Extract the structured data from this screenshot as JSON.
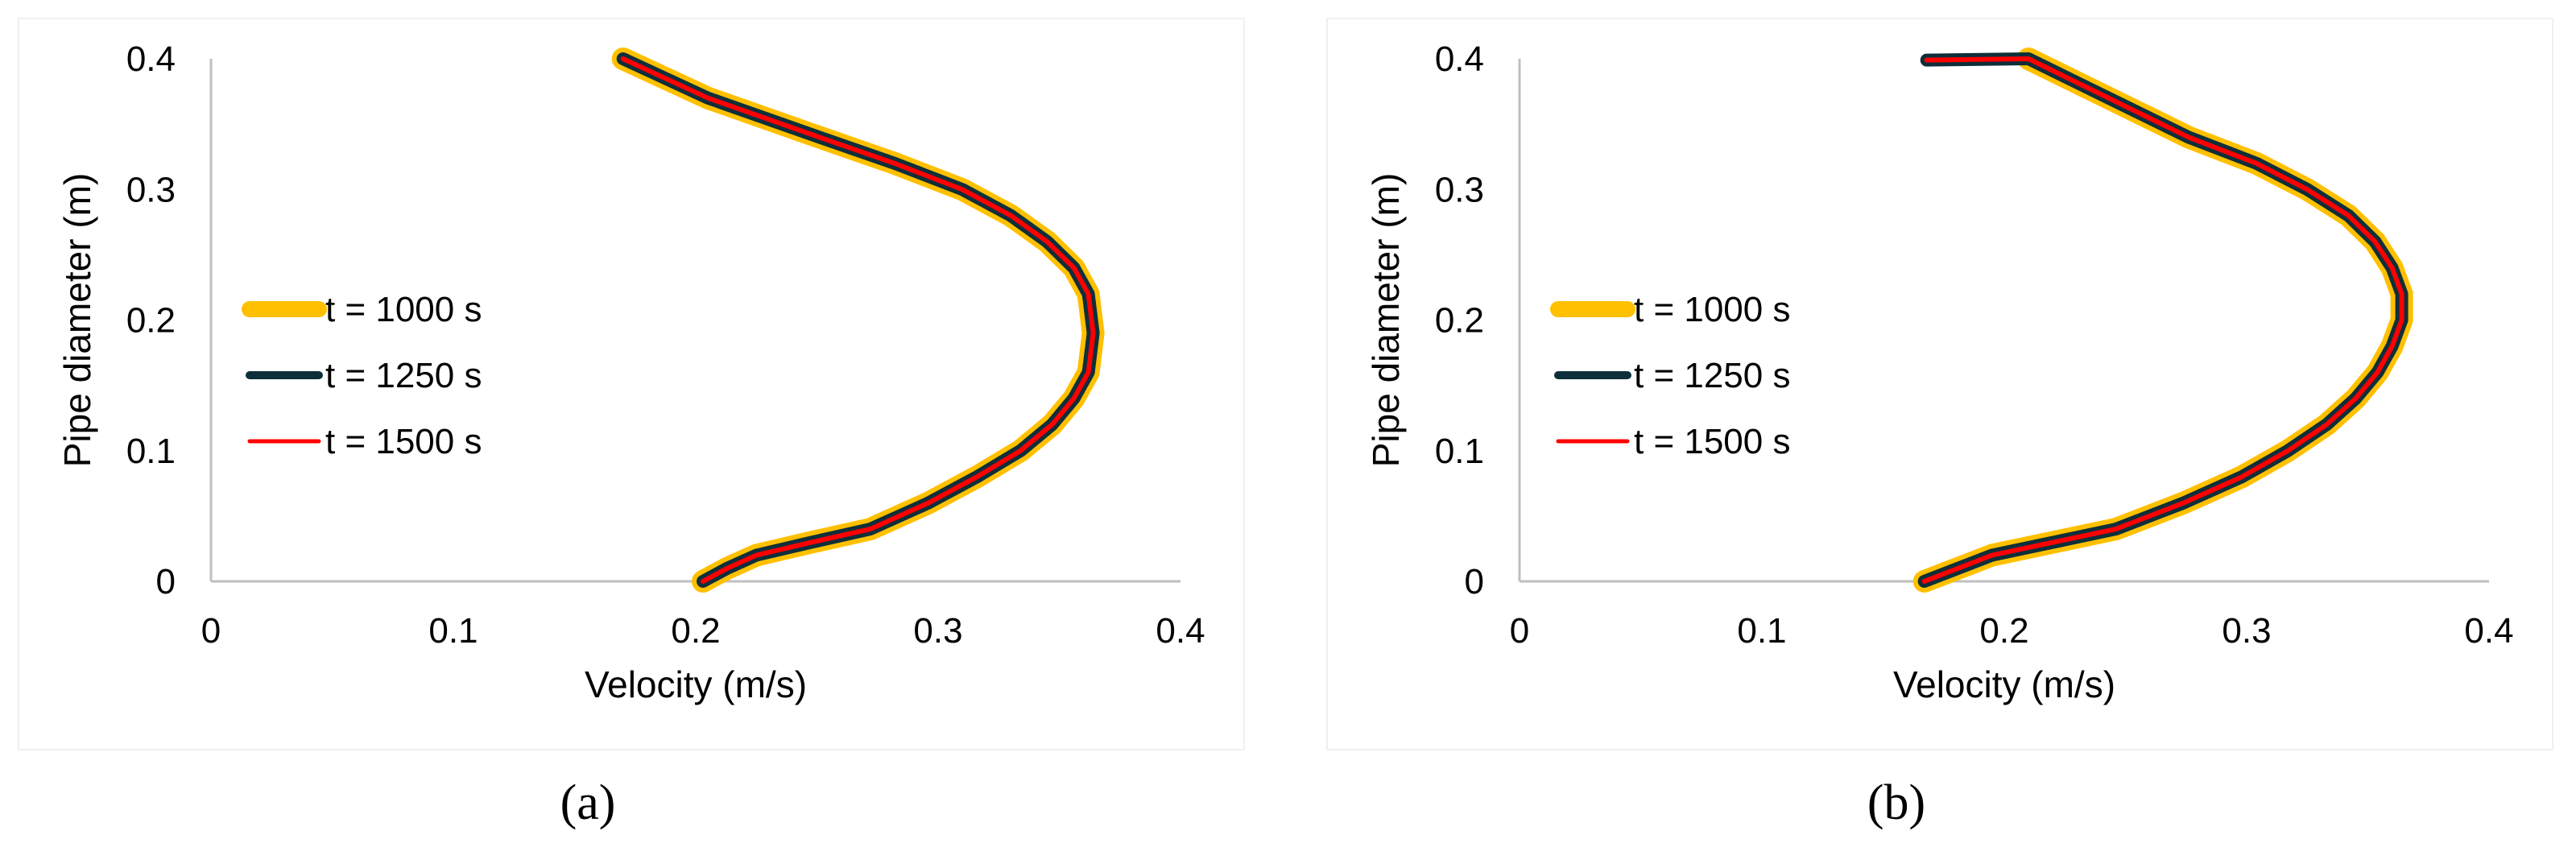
{
  "colors": {
    "t1000": "#FFC000",
    "t1250": "#0E2F3A",
    "t1500": "#FF0000",
    "axis": "#BFBFBF",
    "text": "#000000"
  },
  "chart_data": [
    {
      "type": "line",
      "panel_label": "(a)",
      "xlabel": "Velocity (m/s)",
      "ylabel": "Pipe diameter (m)",
      "xlim": [
        0,
        0.4
      ],
      "ylim": [
        0,
        0.4
      ],
      "x_ticks": [
        "0",
        "0.1",
        "0.2",
        "0.3",
        "0.4"
      ],
      "y_ticks": [
        "0",
        "0.1",
        "0.2",
        "0.3",
        "0.4"
      ],
      "grid": false,
      "legend_position": "left-middle",
      "series": [
        {
          "name": "t = 1000 s",
          "x": [
            0.203,
            0.213,
            0.225,
            0.248,
            0.272,
            0.296,
            0.316,
            0.334,
            0.347,
            0.356,
            0.362,
            0.364,
            0.362,
            0.356,
            0.345,
            0.33,
            0.31,
            0.282,
            0.251,
            0.205,
            0.17
          ],
          "y": [
            0.0,
            0.01,
            0.02,
            0.03,
            0.04,
            0.06,
            0.08,
            0.1,
            0.12,
            0.14,
            0.16,
            0.19,
            0.22,
            0.24,
            0.26,
            0.28,
            0.3,
            0.32,
            0.34,
            0.37,
            0.4
          ]
        },
        {
          "name": "t = 1250 s",
          "x": [
            0.203,
            0.213,
            0.225,
            0.248,
            0.272,
            0.296,
            0.316,
            0.334,
            0.347,
            0.356,
            0.362,
            0.364,
            0.362,
            0.356,
            0.345,
            0.33,
            0.31,
            0.282,
            0.251,
            0.205,
            0.17
          ],
          "y": [
            0.0,
            0.01,
            0.02,
            0.03,
            0.04,
            0.06,
            0.08,
            0.1,
            0.12,
            0.14,
            0.16,
            0.19,
            0.22,
            0.24,
            0.26,
            0.28,
            0.3,
            0.32,
            0.34,
            0.37,
            0.4
          ]
        },
        {
          "name": "t = 1500 s",
          "x": [
            0.203,
            0.213,
            0.225,
            0.248,
            0.272,
            0.296,
            0.316,
            0.334,
            0.347,
            0.356,
            0.362,
            0.364,
            0.362,
            0.356,
            0.345,
            0.33,
            0.31,
            0.282,
            0.251,
            0.205,
            0.17
          ],
          "y": [
            0.0,
            0.01,
            0.02,
            0.03,
            0.04,
            0.06,
            0.08,
            0.1,
            0.12,
            0.14,
            0.16,
            0.19,
            0.22,
            0.24,
            0.26,
            0.28,
            0.3,
            0.32,
            0.34,
            0.37,
            0.4
          ]
        }
      ]
    },
    {
      "type": "line",
      "panel_label": "(b)",
      "xlabel": "Velocity (m/s)",
      "ylabel": "Pipe diameter (m)",
      "xlim": [
        0,
        0.4
      ],
      "ylim": [
        0,
        0.4
      ],
      "x_ticks": [
        "0",
        "0.1",
        "0.2",
        "0.3",
        "0.4"
      ],
      "y_ticks": [
        "0",
        "0.1",
        "0.2",
        "0.3",
        "0.4"
      ],
      "grid": false,
      "legend_position": "left-middle",
      "series": [
        {
          "name": "t = 1000 s",
          "x": [
            0.167,
            0.195,
            0.246,
            0.274,
            0.298,
            0.317,
            0.333,
            0.345,
            0.354,
            0.36,
            0.364,
            0.364,
            0.36,
            0.353,
            0.342,
            0.325,
            0.304,
            0.276,
            0.232,
            0.21
          ],
          "y": [
            0.0,
            0.02,
            0.04,
            0.06,
            0.08,
            0.1,
            0.12,
            0.14,
            0.16,
            0.18,
            0.2,
            0.22,
            0.24,
            0.26,
            0.28,
            0.3,
            0.32,
            0.34,
            0.38,
            0.4
          ]
        },
        {
          "name": "t = 1250 s",
          "x": [
            0.167,
            0.195,
            0.246,
            0.274,
            0.298,
            0.317,
            0.333,
            0.345,
            0.354,
            0.36,
            0.364,
            0.364,
            0.36,
            0.353,
            0.342,
            0.325,
            0.304,
            0.276,
            0.232,
            0.21,
            0.168
          ],
          "y": [
            0.0,
            0.02,
            0.04,
            0.06,
            0.08,
            0.1,
            0.12,
            0.14,
            0.16,
            0.18,
            0.2,
            0.22,
            0.24,
            0.26,
            0.28,
            0.3,
            0.32,
            0.34,
            0.38,
            0.4,
            0.399
          ]
        },
        {
          "name": "t = 1500 s",
          "x": [
            0.167,
            0.195,
            0.246,
            0.274,
            0.298,
            0.317,
            0.333,
            0.345,
            0.354,
            0.36,
            0.364,
            0.364,
            0.36,
            0.353,
            0.342,
            0.325,
            0.304,
            0.276,
            0.232,
            0.21,
            0.168
          ],
          "y": [
            0.0,
            0.02,
            0.04,
            0.06,
            0.08,
            0.1,
            0.12,
            0.14,
            0.16,
            0.18,
            0.2,
            0.22,
            0.24,
            0.26,
            0.28,
            0.3,
            0.32,
            0.34,
            0.38,
            0.4,
            0.399
          ]
        }
      ]
    }
  ]
}
